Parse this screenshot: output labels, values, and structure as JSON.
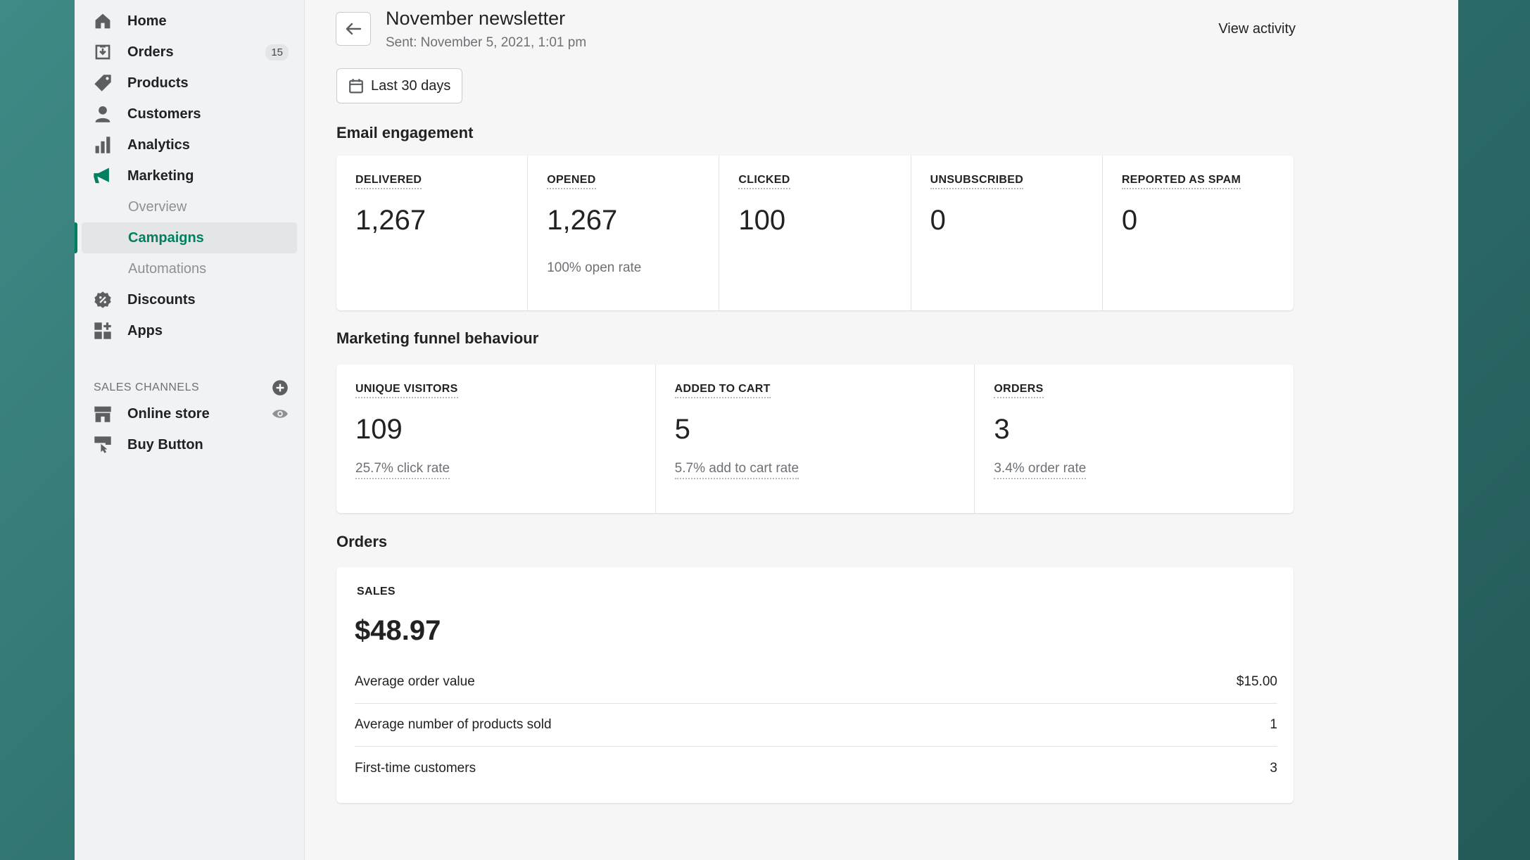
{
  "sidebar": {
    "items": [
      {
        "label": "Home",
        "icon": "home-icon"
      },
      {
        "label": "Orders",
        "icon": "orders-icon",
        "badge": "15"
      },
      {
        "label": "Products",
        "icon": "tag-icon"
      },
      {
        "label": "Customers",
        "icon": "person-icon"
      },
      {
        "label": "Analytics",
        "icon": "bar-chart-icon"
      },
      {
        "label": "Marketing",
        "icon": "megaphone-icon"
      }
    ],
    "marketing_sub": [
      "Overview",
      "Campaigns",
      "Automations"
    ],
    "items_after": [
      {
        "label": "Discounts",
        "icon": "discount-icon"
      },
      {
        "label": "Apps",
        "icon": "apps-icon"
      }
    ],
    "sales_channels_title": "SALES CHANNELS",
    "channels": [
      {
        "label": "Online store",
        "icon": "store-icon"
      },
      {
        "label": "Buy Button",
        "icon": "buy-button-icon"
      }
    ]
  },
  "header": {
    "title": "November newsletter",
    "subtitle": "Sent: November 5, 2021, 1:01 pm",
    "view_activity": "View activity",
    "date_range": "Last 30 days"
  },
  "email_engagement": {
    "heading": "Email engagement",
    "metrics": [
      {
        "label": "DELIVERED",
        "value": "1,267",
        "sub": ""
      },
      {
        "label": "OPENED",
        "value": "1,267",
        "sub": "100% open rate"
      },
      {
        "label": "CLICKED",
        "value": "100",
        "sub": ""
      },
      {
        "label": "UNSUBSCRIBED",
        "value": "0",
        "sub": ""
      },
      {
        "label": "REPORTED AS SPAM",
        "value": "0",
        "sub": ""
      }
    ]
  },
  "funnel": {
    "heading": "Marketing funnel behaviour",
    "metrics": [
      {
        "label": "UNIQUE VISITORS",
        "value": "109",
        "sub": "25.7% click rate"
      },
      {
        "label": "ADDED TO CART",
        "value": "5",
        "sub": "5.7% add to cart rate"
      },
      {
        "label": "ORDERS",
        "value": "3",
        "sub": "3.4% order rate"
      }
    ]
  },
  "orders": {
    "heading": "Orders",
    "sales_label": "SALES",
    "sales_value": "$48.97",
    "rows": [
      {
        "label": "Average order value",
        "value": "$15.00"
      },
      {
        "label": "Average number of products sold",
        "value": "1"
      },
      {
        "label": "First-time customers",
        "value": "3"
      }
    ]
  },
  "colors": {
    "accent": "#008060",
    "background": "#f6f6f7"
  }
}
